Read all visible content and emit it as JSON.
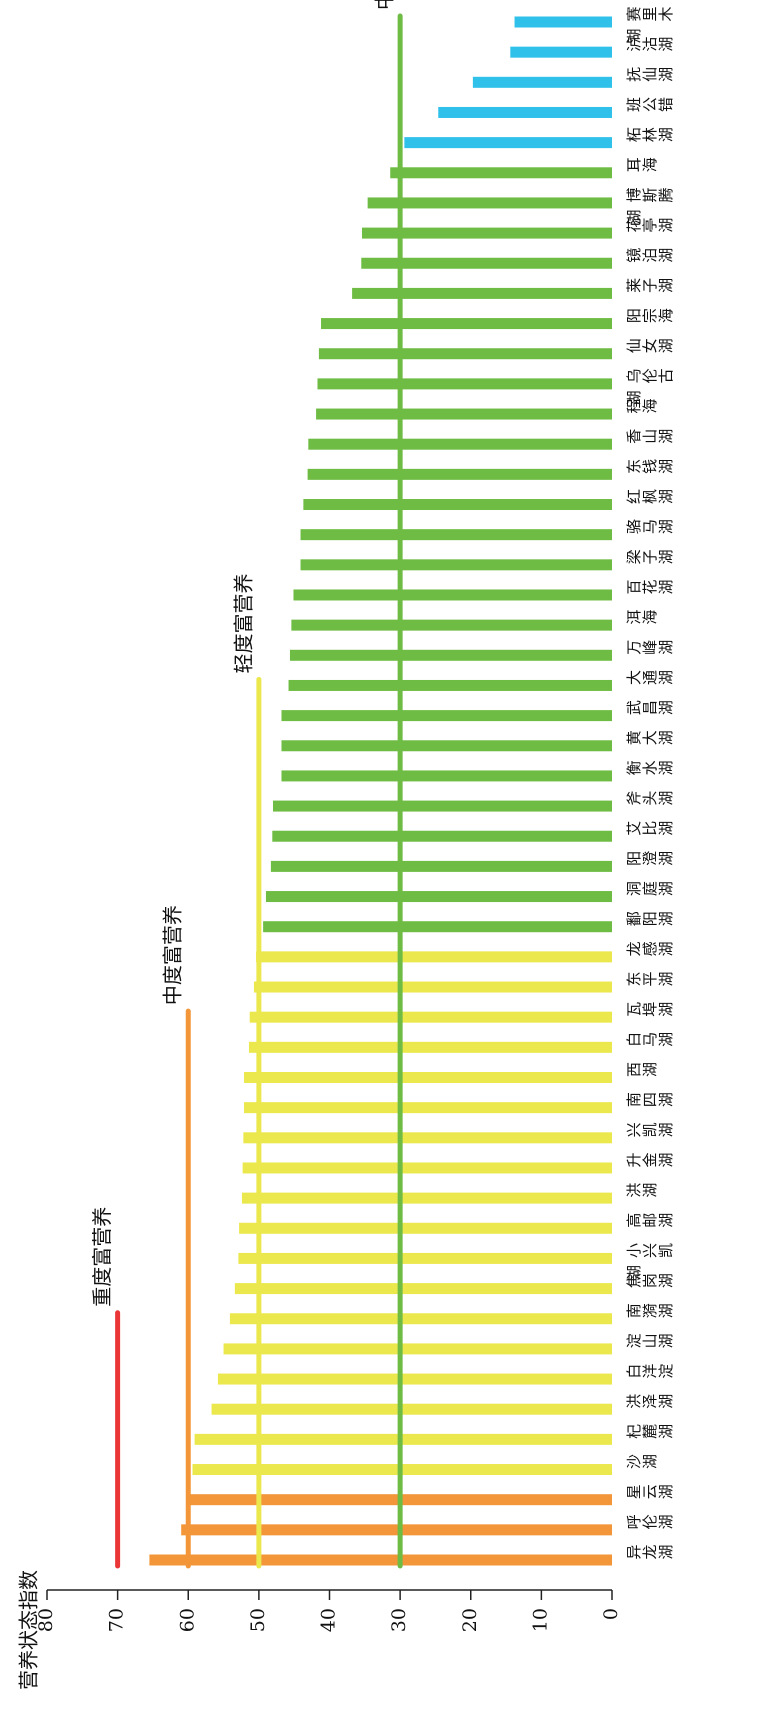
{
  "chart_data": {
    "type": "bar",
    "orientation": "horizontal-bars-rotated",
    "ylabel": "营养状态指数",
    "ylim": [
      0,
      80
    ],
    "yticks": [
      0,
      10,
      20,
      30,
      40,
      50,
      60,
      70,
      80
    ],
    "grid": false,
    "categories": [
      "异龙湖",
      "呼伦湖",
      "星云湖",
      "沙湖",
      "杞麓湖",
      "洪泽湖",
      "白洋淀",
      "淀山湖",
      "南漪湖",
      "焦岗湖",
      "小兴凯湖",
      "高邮湖",
      "洪湖",
      "升金湖",
      "兴凯湖",
      "南四湖",
      "西湖",
      "白马湖",
      "瓦埠湖",
      "东平湖",
      "龙感湖",
      "鄱阳湖",
      "洞庭湖",
      "阳澄湖",
      "艾比湖",
      "斧头湖",
      "衡水湖",
      "黄大湖",
      "武昌湖",
      "大通湖",
      "万峰湖",
      "洱海",
      "百花湖",
      "梁子湖",
      "骆马湖",
      "红枫湖",
      "东钱湖",
      "香山湖",
      "程海",
      "乌伦古湖",
      "仙女湖",
      "阳宗海",
      "莱子湖",
      "镜泊湖",
      "花亭湖",
      "博斯腾湖",
      "耳海",
      "柘林湖",
      "班公错",
      "抚仙湖",
      "泸沽湖",
      "赛里木湖"
    ],
    "values": [
      65.5,
      61.0,
      60.0,
      59.4,
      59.1,
      56.7,
      55.8,
      55.0,
      54.1,
      53.4,
      52.9,
      52.8,
      52.4,
      52.3,
      52.2,
      52.1,
      52.1,
      51.4,
      51.3,
      50.7,
      50.4,
      49.4,
      49.0,
      48.3,
      48.1,
      48.0,
      46.8,
      46.8,
      46.8,
      45.8,
      45.6,
      45.4,
      45.1,
      44.1,
      44.1,
      43.7,
      43.1,
      43.0,
      41.9,
      41.7,
      41.5,
      41.2,
      36.8,
      35.5,
      35.4,
      34.6,
      31.4,
      29.4,
      24.6,
      19.7,
      14.4,
      13.8
    ],
    "colors": {
      "heavy": "#f39639",
      "moderate": "#ebe84e",
      "light": "#6fbc44",
      "meso": "#2fc1ea",
      "line_heavy": "#ea3636",
      "line_moderate": "#f39639",
      "line_light": "#ebe84e",
      "line_meso": "#6fbc44",
      "axis": "#222222"
    },
    "threshold_lines": [
      {
        "label": "重度富营养",
        "value": 70,
        "from_category": 0,
        "to_category": 8,
        "color_key": "line_heavy"
      },
      {
        "label": "中度富营养",
        "value": 60,
        "from_category": 0,
        "to_category": 18,
        "color_key": "line_moderate"
      },
      {
        "label": "轻度富营养",
        "value": 50,
        "from_category": 0,
        "to_category": 29,
        "color_key": "line_light"
      },
      {
        "label": "中营养",
        "value": 30,
        "from_category": 0,
        "to_category": 51,
        "color_key": "line_meso"
      }
    ]
  }
}
